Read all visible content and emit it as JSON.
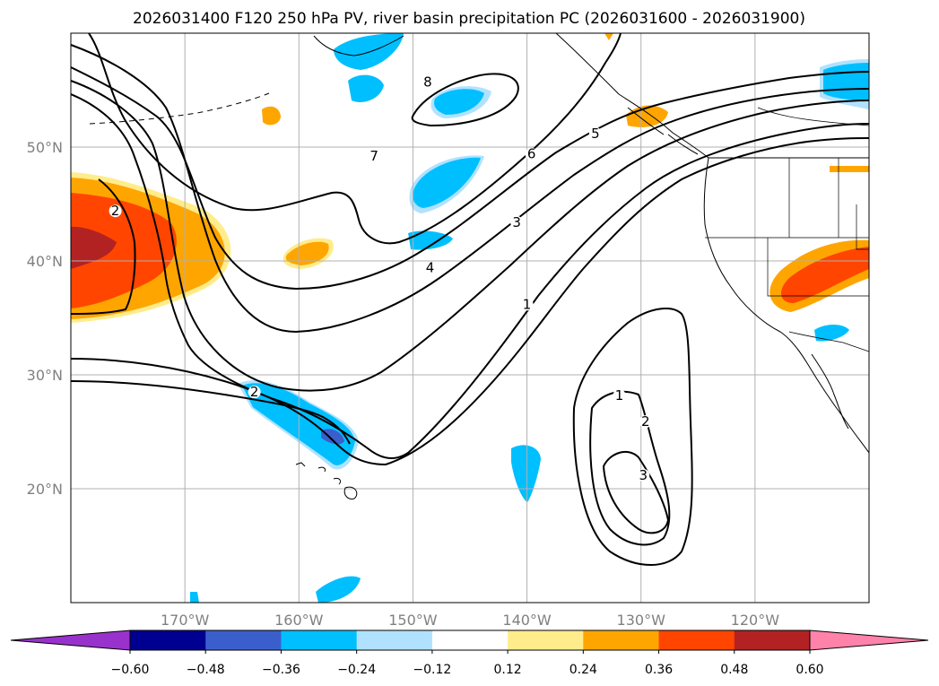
{
  "chart_data": {
    "type": "contour-map",
    "title": "2026031400 F120 250 hPa PV, river basin precipitation PC (2026031600 - 2026031900)",
    "lon_range": [
      -180,
      -110
    ],
    "lat_range": [
      10,
      60
    ],
    "x_ticks": [
      {
        "lon": -170,
        "label": "170°W"
      },
      {
        "lon": -160,
        "label": "160°W"
      },
      {
        "lon": -150,
        "label": "150°W"
      },
      {
        "lon": -140,
        "label": "140°W"
      },
      {
        "lon": -130,
        "label": "130°W"
      },
      {
        "lon": -120,
        "label": "120°W"
      }
    ],
    "y_ticks": [
      {
        "lat": 20,
        "label": "20°N"
      },
      {
        "lat": 30,
        "label": "30°N"
      },
      {
        "lat": 40,
        "label": "40°N"
      },
      {
        "lat": 50,
        "label": "50°N"
      }
    ],
    "colorbar": {
      "levels": [
        -0.6,
        -0.48,
        -0.36,
        -0.24,
        -0.12,
        0.12,
        0.24,
        0.36,
        0.48,
        0.6
      ],
      "tick_labels": [
        "−0.60",
        "−0.48",
        "−0.36",
        "−0.24",
        "−0.12",
        "0.12",
        "0.24",
        "0.36",
        "0.48",
        "0.60"
      ],
      "colors": [
        "#000090",
        "#3a5fcd",
        "#00bfff",
        "#b0e2ff",
        "#ffffff",
        "#ffec8b",
        "#ffa500",
        "#ff4500",
        "#b22222"
      ],
      "under_color": "#9932cc",
      "over_color": "#ff82ab",
      "extend": "both"
    },
    "pv_contour_labels": [
      {
        "text": "8",
        "lon": -148.7,
        "lat": 55.3
      },
      {
        "text": "7",
        "lon": -153.4,
        "lat": 48.8
      },
      {
        "text": "6",
        "lon": -139.6,
        "lat": 49.0
      },
      {
        "text": "5",
        "lon": -134.0,
        "lat": 50.8
      },
      {
        "text": "3",
        "lon": -140.9,
        "lat": 43.0
      },
      {
        "text": "4",
        "lon": -148.5,
        "lat": 39.0
      },
      {
        "text": "1",
        "lon": -140.0,
        "lat": 35.8
      },
      {
        "text": "2",
        "lon": -176.1,
        "lat": 44.0
      },
      {
        "text": "2",
        "lon": -163.9,
        "lat": 28.1
      },
      {
        "text": "1",
        "lon": -131.9,
        "lat": 27.8
      },
      {
        "text": "2",
        "lon": -129.6,
        "lat": 25.5
      },
      {
        "text": "3",
        "lon": -129.8,
        "lat": 20.8
      }
    ]
  }
}
